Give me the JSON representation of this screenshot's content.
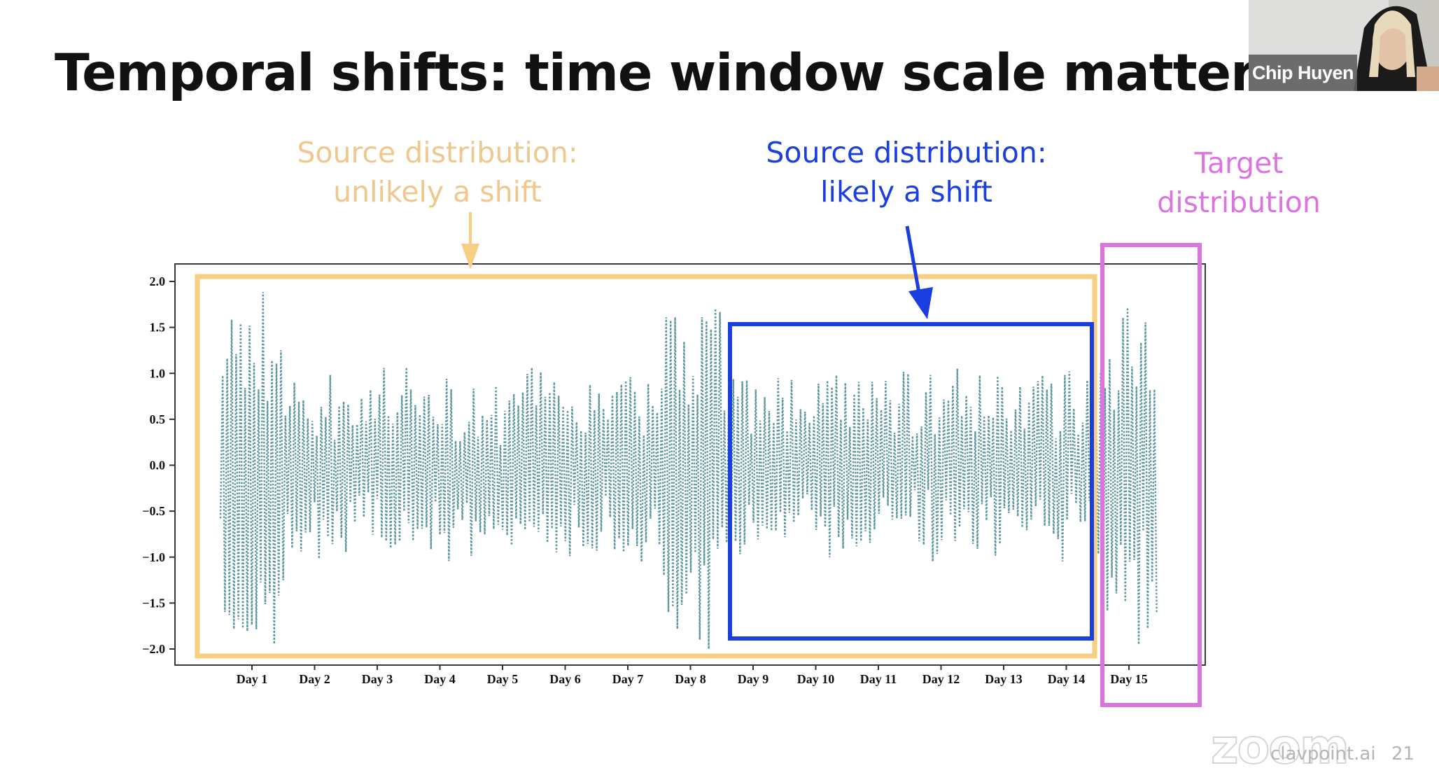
{
  "slide": {
    "title": "Temporal shifts: time window scale matters",
    "annotations": {
      "orange": [
        "Source distribution:",
        "unlikely a shift"
      ],
      "blue": [
        "Source distribution:",
        "likely a shift"
      ],
      "pink": [
        "Target",
        "distribution"
      ]
    },
    "colors": {
      "orange": "#f6cf82",
      "blue": "#1a3ee0",
      "pink": "#dc74e0",
      "series": "#4a8c95"
    }
  },
  "meeting": {
    "participant_name": "Chip Huyen",
    "footer_brand": "clavpoint.ai",
    "footer_logo": "zoom",
    "page_number": "21"
  },
  "chart_data": {
    "type": "line",
    "title": "",
    "xlabel": "",
    "ylabel": "",
    "ylim": [
      -2.0,
      2.0
    ],
    "yticks": [
      "2.0",
      "1.5",
      "1.0",
      "0.5",
      "0.0",
      "−0.5",
      "−1.0",
      "−1.5",
      "−2.0"
    ],
    "categories": [
      "Day 1",
      "Day 2",
      "Day 3",
      "Day 4",
      "Day 5",
      "Day 6",
      "Day 7",
      "Day 8",
      "Day 9",
      "Day 10",
      "Day 11",
      "Day 12",
      "Day 13",
      "Day 14",
      "Day 15"
    ],
    "series": [
      {
        "style": "dotted",
        "amplitude_by_day": [
          1.95,
          0.95,
          0.95,
          0.95,
          0.97,
          0.97,
          0.97,
          1.95,
          0.97,
          0.97,
          0.97,
          0.97,
          0.97,
          0.97,
          1.9
        ]
      }
    ],
    "highlights": [
      {
        "label": "Source distribution: unlikely a shift",
        "from": "Day 1",
        "to": "Day 14",
        "color": "orange"
      },
      {
        "label": "Source distribution: likely a shift",
        "from": "Day 9",
        "to": "Day 14",
        "color": "blue"
      },
      {
        "label": "Target distribution",
        "from": "Day 15",
        "to": "Day 15",
        "color": "pink"
      }
    ]
  }
}
